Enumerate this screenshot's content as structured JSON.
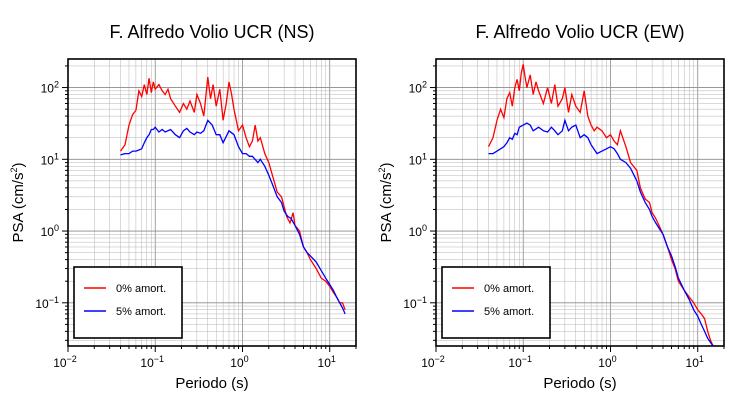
{
  "chart_data": [
    {
      "type": "line",
      "title": "F. Alfredo Volio UCR (NS)",
      "xlabel": "Periodo (s)",
      "ylabel": "PSA (cm/s",
      "ylabel_exp": "2",
      "ylabel_close": ")",
      "xscale": "log",
      "yscale": "log",
      "xlim": [
        0.01,
        20
      ],
      "ylim": [
        0.025,
        250
      ],
      "xticks": [
        {
          "base": "10",
          "exp": "−2",
          "v": 0.01
        },
        {
          "base": "10",
          "exp": "−1",
          "v": 0.1
        },
        {
          "base": "10",
          "exp": "0",
          "v": 1
        },
        {
          "base": "10",
          "exp": "1",
          "v": 10
        }
      ],
      "yticks": [
        {
          "base": "10",
          "exp": "−1",
          "v": 0.1
        },
        {
          "base": "10",
          "exp": "0",
          "v": 1
        },
        {
          "base": "10",
          "exp": "1",
          "v": 10
        },
        {
          "base": "10",
          "exp": "2",
          "v": 100
        }
      ],
      "grid": true,
      "legend_position": "bottom-left",
      "series": [
        {
          "name": "0% amort.",
          "color": "#ff0000",
          "x": [
            0.04,
            0.045,
            0.05,
            0.055,
            0.06,
            0.065,
            0.07,
            0.075,
            0.08,
            0.085,
            0.09,
            0.095,
            0.1,
            0.11,
            0.12,
            0.13,
            0.14,
            0.15,
            0.17,
            0.19,
            0.21,
            0.23,
            0.25,
            0.28,
            0.3,
            0.33,
            0.36,
            0.4,
            0.43,
            0.46,
            0.5,
            0.55,
            0.6,
            0.65,
            0.7,
            0.75,
            0.8,
            0.9,
            1.0,
            1.1,
            1.2,
            1.3,
            1.4,
            1.5,
            1.6,
            1.8,
            2.0,
            2.2,
            2.5,
            2.8,
            3.0,
            3.2,
            3.5,
            3.8,
            4.0,
            4.5,
            5.0,
            5.5,
            6.0,
            7.0,
            8.0,
            9.0,
            10,
            11,
            12,
            13,
            14,
            15
          ],
          "y": [
            13,
            16,
            30,
            42,
            48,
            90,
            75,
            110,
            80,
            135,
            85,
            120,
            95,
            110,
            90,
            80,
            95,
            70,
            55,
            45,
            60,
            50,
            65,
            45,
            80,
            60,
            40,
            140,
            70,
            110,
            55,
            95,
            35,
            60,
            120,
            80,
            50,
            25,
            30,
            20,
            15,
            18,
            30,
            18,
            20,
            12,
            9,
            6,
            3.5,
            3,
            2.2,
            1.6,
            1.3,
            1.8,
            1.2,
            1,
            0.6,
            0.5,
            0.4,
            0.3,
            0.22,
            0.2,
            0.17,
            0.14,
            0.12,
            0.1,
            0.1,
            0.08
          ]
        },
        {
          "name": "5% amort.",
          "color": "#0000ff",
          "x": [
            0.04,
            0.045,
            0.05,
            0.055,
            0.06,
            0.065,
            0.07,
            0.075,
            0.08,
            0.085,
            0.09,
            0.095,
            0.1,
            0.11,
            0.12,
            0.13,
            0.15,
            0.17,
            0.19,
            0.21,
            0.23,
            0.25,
            0.28,
            0.3,
            0.33,
            0.36,
            0.4,
            0.45,
            0.5,
            0.55,
            0.6,
            0.7,
            0.8,
            0.9,
            1.0,
            1.1,
            1.2,
            1.3,
            1.5,
            1.6,
            1.8,
            2.0,
            2.2,
            2.5,
            2.8,
            3.0,
            3.3,
            3.6,
            4.0,
            4.5,
            5.0,
            5.5,
            6.0,
            7.0,
            8.0,
            9.0,
            10,
            11,
            12,
            13,
            14,
            15
          ],
          "y": [
            11.5,
            12,
            12,
            13,
            13,
            13.5,
            14,
            17,
            20,
            22,
            26,
            26,
            28,
            24,
            26,
            24,
            26,
            22,
            20,
            25,
            27,
            24,
            22,
            24,
            23,
            25,
            35,
            30,
            22,
            22,
            17,
            25,
            22,
            15,
            12,
            12,
            11,
            11,
            9,
            10,
            8,
            6,
            4.5,
            3,
            2.5,
            1.9,
            1.6,
            1.5,
            1.2,
            0.9,
            0.6,
            0.5,
            0.45,
            0.37,
            0.28,
            0.22,
            0.18,
            0.15,
            0.12,
            0.1,
            0.085,
            0.07
          ]
        }
      ]
    },
    {
      "type": "line",
      "title": "F. Alfredo Volio UCR (EW)",
      "xlabel": "Periodo (s)",
      "ylabel": "PSA (cm/s",
      "ylabel_exp": "2",
      "ylabel_close": ")",
      "xscale": "log",
      "yscale": "log",
      "xlim": [
        0.01,
        20
      ],
      "ylim": [
        0.025,
        250
      ],
      "xticks": [
        {
          "base": "10",
          "exp": "−2",
          "v": 0.01
        },
        {
          "base": "10",
          "exp": "−1",
          "v": 0.1
        },
        {
          "base": "10",
          "exp": "0",
          "v": 1
        },
        {
          "base": "10",
          "exp": "1",
          "v": 10
        }
      ],
      "yticks": [
        {
          "base": "10",
          "exp": "−1",
          "v": 0.1
        },
        {
          "base": "10",
          "exp": "0",
          "v": 1
        },
        {
          "base": "10",
          "exp": "1",
          "v": 10
        },
        {
          "base": "10",
          "exp": "2",
          "v": 100
        }
      ],
      "grid": true,
      "legend_position": "bottom-left",
      "series": [
        {
          "name": "0% amort.",
          "color": "#ff0000",
          "x": [
            0.04,
            0.045,
            0.05,
            0.055,
            0.06,
            0.065,
            0.07,
            0.075,
            0.08,
            0.085,
            0.09,
            0.095,
            0.1,
            0.105,
            0.11,
            0.12,
            0.13,
            0.14,
            0.15,
            0.17,
            0.19,
            0.21,
            0.23,
            0.25,
            0.28,
            0.3,
            0.33,
            0.36,
            0.4,
            0.45,
            0.5,
            0.55,
            0.6,
            0.65,
            0.7,
            0.8,
            0.9,
            1.0,
            1.1,
            1.2,
            1.3,
            1.5,
            1.7,
            2.0,
            2.2,
            2.5,
            2.8,
            3.0,
            3.3,
            3.6,
            4.0,
            4.5,
            5.0,
            5.5,
            6.0,
            7.0,
            8.0,
            9.0,
            10,
            11,
            12,
            13,
            14,
            15
          ],
          "y": [
            15,
            20,
            35,
            50,
            38,
            70,
            85,
            55,
            100,
            130,
            90,
            160,
            210,
            140,
            100,
            150,
            80,
            120,
            90,
            60,
            100,
            60,
            110,
            55,
            70,
            100,
            45,
            80,
            55,
            45,
            90,
            40,
            30,
            25,
            28,
            25,
            20,
            22,
            18,
            16,
            25,
            15,
            9,
            7,
            4,
            2.8,
            2.5,
            1.8,
            1.5,
            1.2,
            0.9,
            0.6,
            0.4,
            0.3,
            0.2,
            0.15,
            0.12,
            0.1,
            0.08,
            0.07,
            0.06,
            0.04,
            0.03,
            0.025
          ]
        },
        {
          "name": "5% amort.",
          "color": "#0000ff",
          "x": [
            0.04,
            0.045,
            0.05,
            0.055,
            0.06,
            0.065,
            0.07,
            0.075,
            0.08,
            0.085,
            0.09,
            0.1,
            0.11,
            0.12,
            0.13,
            0.15,
            0.17,
            0.19,
            0.21,
            0.23,
            0.25,
            0.28,
            0.3,
            0.33,
            0.36,
            0.4,
            0.45,
            0.5,
            0.55,
            0.6,
            0.7,
            0.8,
            0.9,
            1.0,
            1.1,
            1.2,
            1.3,
            1.5,
            1.7,
            2.0,
            2.2,
            2.5,
            2.8,
            3.0,
            3.3,
            3.6,
            4.0,
            4.5,
            5.0,
            5.5,
            6.0,
            7.0,
            8.0,
            9.0,
            10,
            11,
            12,
            13,
            14,
            15
          ],
          "y": [
            12,
            12,
            13,
            14,
            15,
            17,
            20,
            19,
            23,
            22,
            28,
            30,
            32,
            30,
            25,
            28,
            25,
            24,
            28,
            25,
            22,
            25,
            35,
            25,
            28,
            30,
            20,
            22,
            20,
            16,
            12,
            13,
            14,
            15,
            14,
            12,
            10,
            9,
            7.5,
            5,
            3.5,
            2.5,
            2,
            1.6,
            1.3,
            1.1,
            0.9,
            0.6,
            0.45,
            0.32,
            0.22,
            0.15,
            0.11,
            0.08,
            0.065,
            0.05,
            0.04,
            0.032,
            0.028,
            0.025
          ]
        }
      ]
    }
  ]
}
